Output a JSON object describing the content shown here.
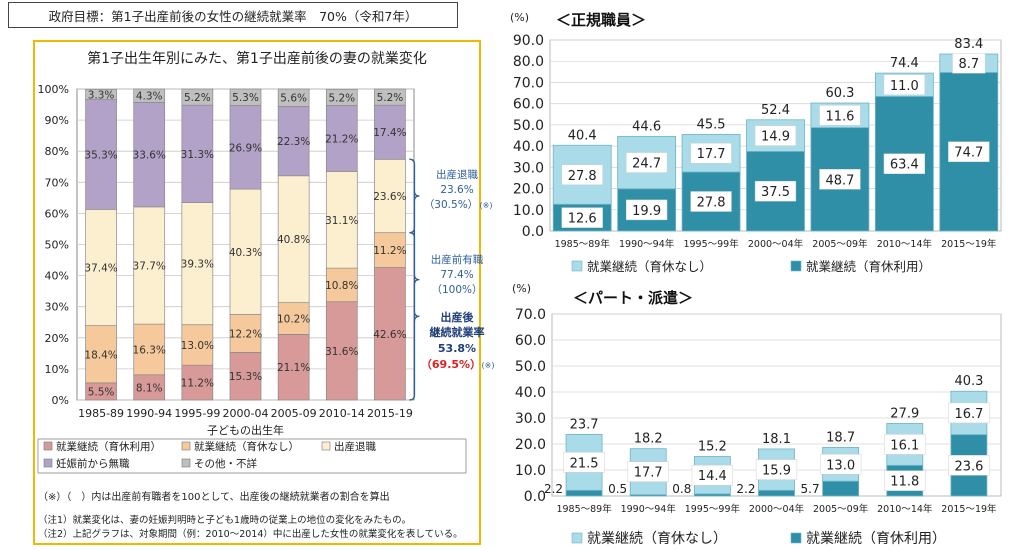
{
  "goal": {
    "text": "政府目標：第1子出産前後の女性の継続就業率　70%（令和7年）"
  },
  "left_chart": {
    "title": "第1子出生年別にみた、第1子出産前後の妻の就業変化",
    "xlabel": "子どもの出生年",
    "legend": [
      "就業継続（育休利用）",
      "就業継続（育休なし）",
      "出産退職",
      "妊娠前から無職",
      "その他・不詳"
    ],
    "brace_labels": {
      "retire": {
        "line1": "出産退職",
        "line2": "23.6%",
        "line3": "（30.5%）",
        "mark": "(※)"
      },
      "prebirth": {
        "line1": "出産前有職",
        "line2": "77.4%",
        "line3": "（100%）"
      },
      "continue": {
        "line1": "出産後",
        "line2": "継続就業率",
        "line3": "53.8%",
        "line4": "（69.5%）",
        "mark": "(※)"
      }
    }
  },
  "chart_data": [
    {
      "type": "bar",
      "stacked": true,
      "orientation": "vertical",
      "title": "第1子出生年別にみた、第1子出産前後の妻の就業変化",
      "xlabel": "子どもの出生年",
      "ylabel": "",
      "ylim": [
        0,
        100
      ],
      "yticks": [
        "0%",
        "10%",
        "20%",
        "30%",
        "40%",
        "50%",
        "60%",
        "70%",
        "80%",
        "90%",
        "100%"
      ],
      "categories": [
        "1985-89",
        "1990-94",
        "1995-99",
        "2000-04",
        "2005-09",
        "2010-14",
        "2015-19"
      ],
      "series": [
        {
          "name": "就業継続（育休利用）",
          "color": "#d89a98",
          "values": [
            5.5,
            8.1,
            11.2,
            15.3,
            21.1,
            31.6,
            42.6
          ],
          "labels": [
            "5.5%",
            "8.1%",
            "11.2%",
            "15.3%",
            "21.1%",
            "31.6%",
            "42.6%"
          ]
        },
        {
          "name": "就業継続（育休なし）",
          "color": "#f6c99c",
          "values": [
            18.4,
            16.3,
            13.0,
            12.2,
            10.2,
            10.8,
            11.2
          ],
          "labels": [
            "18.4%",
            "16.3%",
            "13.0%",
            "12.2%",
            "10.2%",
            "10.8%",
            "11.2%"
          ]
        },
        {
          "name": "出産退職",
          "color": "#fcefcf",
          "values": [
            37.4,
            37.7,
            39.3,
            40.3,
            40.8,
            31.1,
            23.6
          ],
          "labels": [
            "37.4%",
            "37.7%",
            "39.3%",
            "40.3%",
            "40.8%",
            "31.1%",
            "23.6%"
          ]
        },
        {
          "name": "妊娠前から無職",
          "color": "#b3a2c7",
          "values": [
            35.3,
            33.6,
            31.3,
            26.9,
            22.3,
            21.2,
            17.4
          ],
          "labels": [
            "35.3%",
            "33.6%",
            "31.3%",
            "26.9%",
            "22.3%",
            "21.2%",
            "17.4%"
          ]
        },
        {
          "name": "その他・不詳",
          "color": "#bfbfbf",
          "values": [
            3.3,
            4.3,
            5.2,
            5.3,
            5.6,
            5.2,
            5.2
          ],
          "labels": [
            "3.3%",
            "4.3%",
            "5.2%",
            "5.3%",
            "5.6%",
            "5.2%",
            "5.2%"
          ]
        }
      ]
    },
    {
      "type": "bar",
      "stacked": true,
      "title": "＜正規職員＞",
      "ylabel": "(%)",
      "ylim": [
        0,
        90
      ],
      "yticks": [
        "0.0",
        "10.0",
        "20.0",
        "30.0",
        "40.0",
        "50.0",
        "60.0",
        "70.0",
        "80.0",
        "90.0"
      ],
      "categories": [
        "1985～89年",
        "1990～94年",
        "1995～99年",
        "2000～04年",
        "2005～09年",
        "2010～14年",
        "2015～19年"
      ],
      "totals": [
        "40.4",
        "44.6",
        "45.5",
        "52.4",
        "60.3",
        "74.4",
        "83.4"
      ],
      "series": [
        {
          "name": "就業継続（育休利用）",
          "color": "#2e8fa6",
          "values": [
            12.6,
            19.9,
            27.8,
            37.5,
            48.7,
            63.4,
            74.7
          ],
          "labels": [
            "12.6",
            "19.9",
            "27.8",
            "37.5",
            "48.7",
            "63.4",
            "74.7"
          ]
        },
        {
          "name": "就業継続（育休なし）",
          "color": "#a9dbe8",
          "values": [
            27.8,
            24.7,
            17.7,
            14.9,
            11.6,
            11.0,
            8.7
          ],
          "labels": [
            "27.8",
            "24.7",
            "17.7",
            "14.9",
            "11.6",
            "11.0",
            "8.7"
          ]
        }
      ]
    },
    {
      "type": "bar",
      "stacked": true,
      "title": "＜パート・派遣＞",
      "ylabel": "(%)",
      "ylim": [
        0,
        70
      ],
      "yticks": [
        "0.0",
        "10.0",
        "20.0",
        "30.0",
        "40.0",
        "50.0",
        "60.0",
        "70.0"
      ],
      "categories": [
        "1985～89年",
        "1990～94年",
        "1995～99年",
        "2000～04年",
        "2005～09年",
        "2010～14年",
        "2015～19年"
      ],
      "totals": [
        "23.7",
        "18.2",
        "15.2",
        "18.1",
        "18.7",
        "27.9",
        "40.3"
      ],
      "series": [
        {
          "name": "就業継続（育休利用）",
          "color": "#2e8fa6",
          "values": [
            2.2,
            0.5,
            0.8,
            2.2,
            5.7,
            11.8,
            23.6
          ],
          "labels": [
            "2.2",
            "0.5",
            "0.8",
            "2.2",
            "5.7",
            "11.8",
            "23.6"
          ]
        },
        {
          "name": "就業継続（育休なし）",
          "color": "#a9dbe8",
          "values": [
            21.5,
            17.7,
            14.4,
            15.9,
            13.0,
            16.1,
            16.7
          ],
          "labels": [
            "21.5",
            "17.7",
            "14.4",
            "15.9",
            "13.0",
            "16.1",
            "16.7"
          ]
        }
      ]
    }
  ],
  "right_legend": [
    "就業継続（育休なし）",
    "就業継続（育休利用）"
  ],
  "notes": {
    "mark_note": "（※）（　）内は出産前有職者を100として、出産後の継続就業者の割合を算出",
    "note1": "（注1）就業変化は、妻の妊娠判明時と子ども1歳時の従業上の地位の変化をみたもの。",
    "note2": "（注2）上記グラフは、対象期間（例：2010～2014）中に出産した女性の就業変化を表している。"
  }
}
